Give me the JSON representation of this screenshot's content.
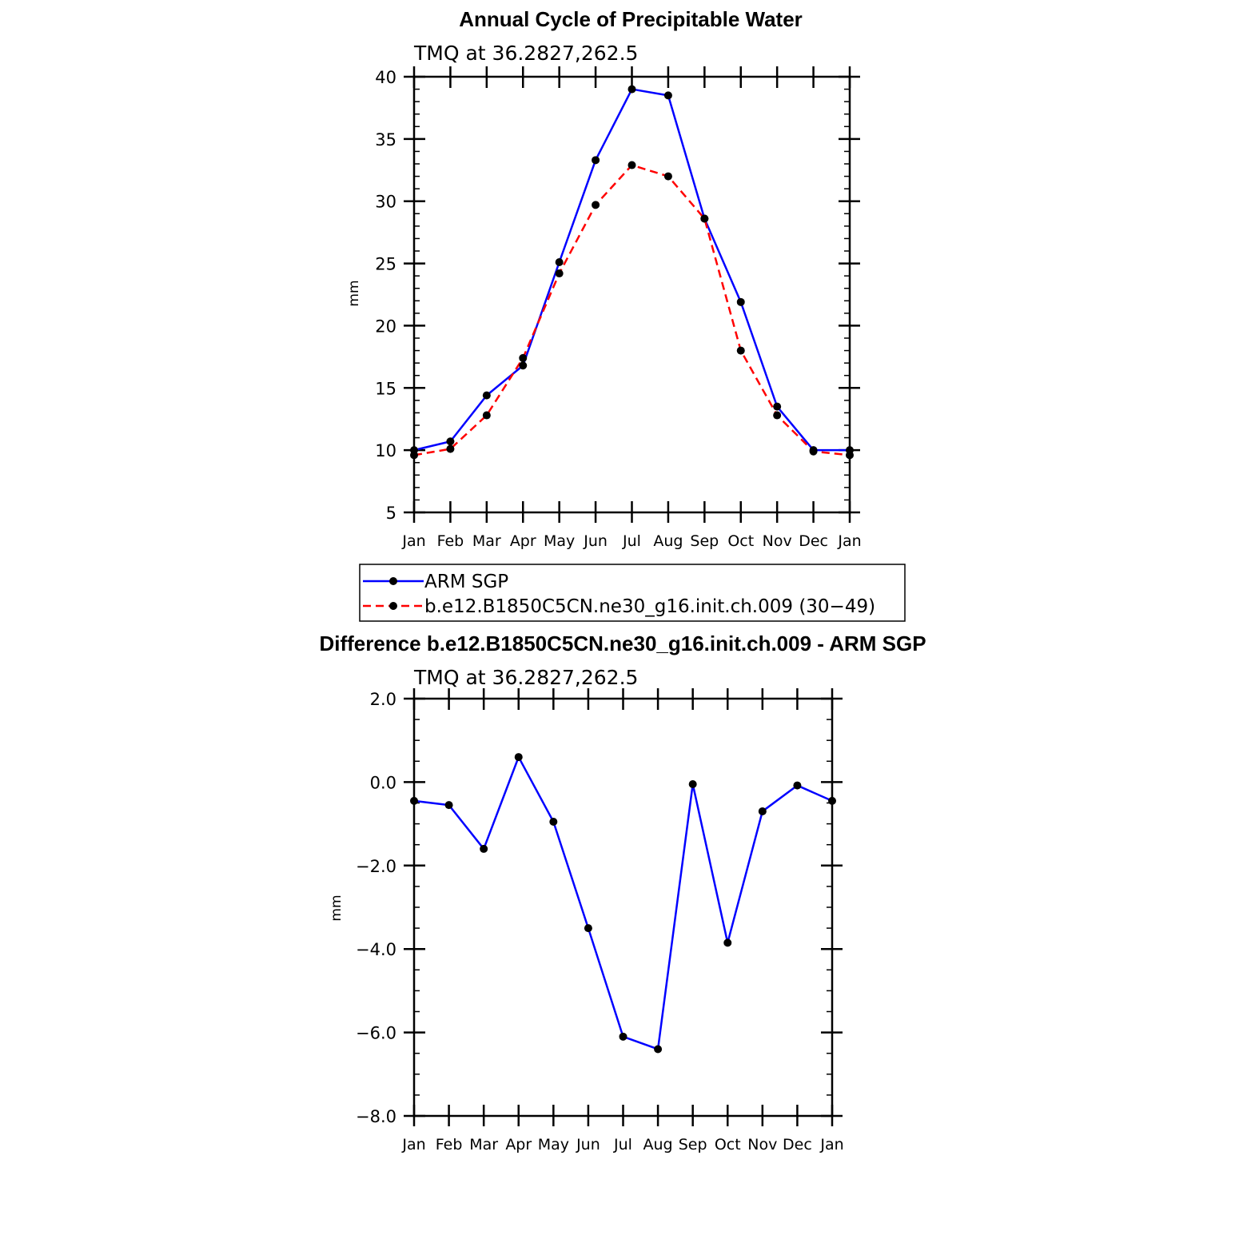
{
  "chart_data": [
    {
      "type": "line",
      "title": "Annual Cycle of Precipitable Water",
      "subtitle": "TMQ at 36.2827,262.5",
      "xlabel": "",
      "ylabel": "mm",
      "ylim": [
        5,
        40
      ],
      "yticks": [
        "5",
        "10",
        "15",
        "20",
        "25",
        "30",
        "35",
        "40"
      ],
      "yminor_step": 1,
      "categories": [
        "Jan",
        "Feb",
        "Mar",
        "Apr",
        "May",
        "Jun",
        "Jul",
        "Aug",
        "Sep",
        "Oct",
        "Nov",
        "Dec",
        "Jan"
      ],
      "series": [
        {
          "name": "ARM SGP",
          "color": "#0000ff",
          "dash": "solid",
          "values": [
            10.0,
            10.7,
            14.4,
            16.8,
            25.1,
            33.3,
            39.0,
            38.5,
            28.6,
            21.9,
            13.5,
            10.0,
            10.0
          ]
        },
        {
          "name": "b.e12.B1850C5CN.ne30_g16.init.ch.009 (30−49)",
          "color": "#ff0000",
          "dash": "dashed",
          "values": [
            9.6,
            10.1,
            12.8,
            17.4,
            24.2,
            29.7,
            32.9,
            32.0,
            28.6,
            18.0,
            12.8,
            9.9,
            9.6
          ]
        }
      ],
      "legend": {
        "position": "below"
      }
    },
    {
      "type": "line",
      "title": "Difference b.e12.B1850C5CN.ne30_g16.init.ch.009 - ARM SGP",
      "subtitle": "TMQ at 36.2827,262.5",
      "xlabel": "",
      "ylabel": "mm",
      "ylim": [
        -8,
        2
      ],
      "yticks": [
        "−8.0",
        "−6.0",
        "−4.0",
        "−2.0",
        "0.0",
        "2.0"
      ],
      "yminor_step": 0.5,
      "categories": [
        "Jan",
        "Feb",
        "Mar",
        "Apr",
        "May",
        "Jun",
        "Jul",
        "Aug",
        "Sep",
        "Oct",
        "Nov",
        "Dec",
        "Jan"
      ],
      "series": [
        {
          "name": "Difference",
          "color": "#0000ff",
          "dash": "solid",
          "values": [
            -0.45,
            -0.55,
            -1.6,
            0.6,
            -0.95,
            -3.5,
            -6.1,
            -6.4,
            -0.05,
            -3.85,
            -0.7,
            -0.08,
            -0.45
          ]
        }
      ]
    }
  ]
}
